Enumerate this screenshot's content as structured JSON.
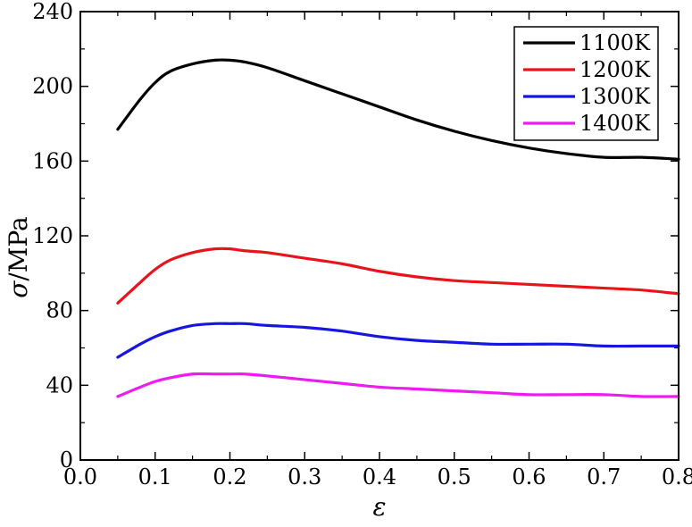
{
  "chart_data": {
    "type": "line",
    "xlabel": "ε",
    "ylabel_symbol": "σ",
    "ylabel_unit": "/MPa",
    "xlim": [
      0.0,
      0.8
    ],
    "ylim": [
      0,
      240
    ],
    "xticks": [
      "0.0",
      "0.1",
      "0.2",
      "0.3",
      "0.4",
      "0.5",
      "0.6",
      "0.7",
      "0.8"
    ],
    "xtick_values": [
      0.0,
      0.1,
      0.2,
      0.3,
      0.4,
      0.5,
      0.6,
      0.7,
      0.8
    ],
    "yticks": [
      "0",
      "40",
      "80",
      "120",
      "160",
      "200",
      "240"
    ],
    "ytick_values": [
      0,
      40,
      80,
      120,
      160,
      200,
      240
    ],
    "grid": false,
    "legend_position": "top-right",
    "series": [
      {
        "name": "1100K",
        "color": "#000000",
        "x": [
          0.05,
          0.08,
          0.1,
          0.12,
          0.15,
          0.18,
          0.2,
          0.22,
          0.25,
          0.3,
          0.35,
          0.4,
          0.45,
          0.5,
          0.55,
          0.6,
          0.65,
          0.7,
          0.75,
          0.8
        ],
        "y": [
          177,
          193,
          202,
          208,
          212,
          214,
          214,
          213,
          210,
          203,
          196,
          189,
          182,
          176,
          171,
          167,
          164,
          162,
          162,
          161
        ]
      },
      {
        "name": "1200K",
        "color": "#e8141c",
        "x": [
          0.05,
          0.08,
          0.1,
          0.12,
          0.15,
          0.18,
          0.2,
          0.22,
          0.25,
          0.3,
          0.35,
          0.4,
          0.45,
          0.5,
          0.55,
          0.6,
          0.65,
          0.7,
          0.75,
          0.8
        ],
        "y": [
          84,
          95,
          102,
          107,
          111,
          113,
          113,
          112,
          111,
          108,
          105,
          101,
          98,
          96,
          95,
          94,
          93,
          92,
          91,
          89
        ]
      },
      {
        "name": "1300K",
        "color": "#1616e0",
        "x": [
          0.05,
          0.08,
          0.1,
          0.12,
          0.15,
          0.18,
          0.2,
          0.22,
          0.25,
          0.3,
          0.35,
          0.4,
          0.45,
          0.5,
          0.55,
          0.6,
          0.65,
          0.7,
          0.75,
          0.8
        ],
        "y": [
          55,
          62,
          66,
          69,
          72,
          73,
          73,
          73,
          72,
          71,
          69,
          66,
          64,
          63,
          62,
          62,
          62,
          61,
          61,
          61
        ]
      },
      {
        "name": "1400K",
        "color": "#ee1aee",
        "x": [
          0.05,
          0.08,
          0.1,
          0.12,
          0.15,
          0.18,
          0.2,
          0.22,
          0.25,
          0.3,
          0.35,
          0.4,
          0.45,
          0.5,
          0.55,
          0.6,
          0.65,
          0.7,
          0.75,
          0.8
        ],
        "y": [
          34,
          39,
          42,
          44,
          46,
          46,
          46,
          46,
          45,
          43,
          41,
          39,
          38,
          37,
          36,
          35,
          35,
          35,
          34,
          34
        ]
      }
    ]
  }
}
